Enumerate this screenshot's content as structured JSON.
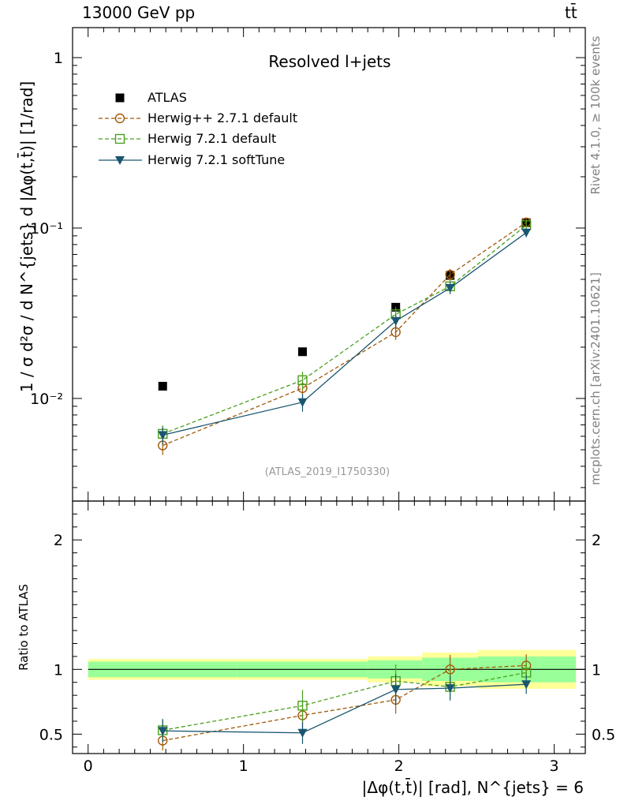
{
  "header": {
    "energy_label": "13000 GeV pp",
    "process_label": "tt̄",
    "rivet_label": "Rivet 4.1.0, ≥ 100k events",
    "mcplots_label": "mcplots.cern.ch [arXiv:2401.10621]",
    "analysis_id": "(ATLAS_2019_I1750330)"
  },
  "chart_data": {
    "type": "scatter",
    "title": "Resolved l+jets",
    "xlabel": "|Δφ(t,t̄)| [rad], N^{jets} = 6",
    "ylabel": "1 / σ d²σ / d N^{jets} d |Δφ(t,t̄)| [1/rad]",
    "ratio_ylabel": "Ratio to ATLAS",
    "xlim": [
      -0.1,
      3.2
    ],
    "ylim": [
      0.0025,
      1.5
    ],
    "yscale": "log",
    "ratio_ylim": [
      0.35,
      2.3
    ],
    "x_ticks": [
      "0",
      "1",
      "2",
      "3"
    ],
    "y_ticks_main": [
      "1",
      "10⁻¹",
      "10⁻²"
    ],
    "y_ticks_ratio": [
      "0.5",
      "1",
      "2"
    ],
    "x": [
      0.48,
      1.38,
      1.98,
      2.33,
      2.82
    ],
    "bin_edges": [
      0.0,
      0.96,
      1.8,
      2.15,
      2.51,
      3.14
    ],
    "legend": [
      "ATLAS",
      "Herwig++ 2.7.1 default",
      "Herwig 7.2.1 default",
      "Herwig 7.2.1 softTune"
    ],
    "series": [
      {
        "name": "ATLAS",
        "color": "#000000",
        "marker": "square",
        "values": [
          0.0118,
          0.0188,
          0.0343,
          0.0527,
          0.1075
        ]
      },
      {
        "name": "Herwig++ 2.7.1 default",
        "color": "#a05a0a",
        "marker": "circle-open",
        "values": [
          0.0053,
          0.0115,
          0.0245,
          0.0533,
          0.108
        ],
        "ratio": [
          0.45,
          0.645,
          0.765,
          1.0,
          1.03
        ]
      },
      {
        "name": "Herwig 7.2.1 default",
        "color": "#4aa01e",
        "marker": "square-open",
        "values": [
          0.0062,
          0.0128,
          0.0312,
          0.0455,
          0.104
        ],
        "ratio": [
          0.53,
          0.72,
          0.91,
          0.865,
          0.975
        ]
      },
      {
        "name": "Herwig 7.2.1 softTune",
        "color": "#1a5670",
        "marker": "triangle-down",
        "values": [
          0.0061,
          0.0095,
          0.0285,
          0.0445,
          0.094
        ],
        "ratio": [
          0.525,
          0.51,
          0.845,
          0.855,
          0.885
        ]
      }
    ],
    "ratio_band_inner": [
      [
        0.94,
        1.06
      ],
      [
        0.94,
        1.06
      ],
      [
        0.93,
        1.07
      ],
      [
        0.91,
        1.09
      ],
      [
        0.9,
        1.1
      ]
    ],
    "ratio_band_outer": [
      [
        0.92,
        1.08
      ],
      [
        0.92,
        1.08
      ],
      [
        0.9,
        1.1
      ],
      [
        0.87,
        1.13
      ],
      [
        0.85,
        1.15
      ]
    ]
  }
}
